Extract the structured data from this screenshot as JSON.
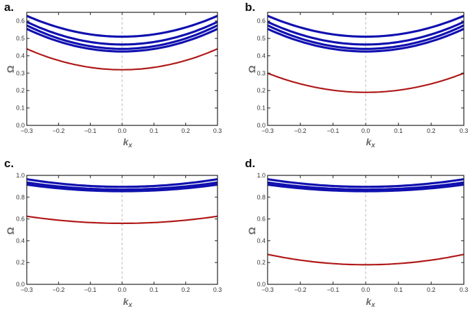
{
  "chart_data": [
    {
      "panel_label": "a.",
      "type": "line",
      "xlabel": "k",
      "xlabel_sub": "x",
      "ylabel": "Ω",
      "xlim": [
        -0.3,
        0.3
      ],
      "ylim": [
        0,
        0.65
      ],
      "xticks": [
        "-0.3",
        "-0.2",
        "-0.1",
        "0.0",
        "0.1",
        "0.2",
        "0.3"
      ],
      "yticks": [
        "0.0",
        "0.1",
        "0.2",
        "0.3",
        "0.4",
        "0.5",
        "0.6"
      ],
      "grid": false,
      "reference_line": {
        "x": 0,
        "style": "dashed"
      },
      "colors": {
        "red_band": "#b01818",
        "blue_band": "#1010b0"
      },
      "series": [
        {
          "color": "red",
          "x": [
            -0.3,
            0.0,
            0.3
          ],
          "values": [
            0.44,
            0.32,
            0.44
          ]
        },
        {
          "color": "blue",
          "x": [
            -0.3,
            0.0,
            0.3
          ],
          "values": [
            0.555,
            0.425,
            0.555
          ]
        },
        {
          "color": "blue",
          "x": [
            -0.3,
            0.0,
            0.3
          ],
          "values": [
            0.575,
            0.44,
            0.575
          ]
        },
        {
          "color": "blue",
          "x": [
            -0.3,
            0.0,
            0.3
          ],
          "values": [
            0.595,
            0.465,
            0.595
          ]
        },
        {
          "color": "blue",
          "x": [
            -0.3,
            0.0,
            0.3
          ],
          "values": [
            0.63,
            0.51,
            0.63
          ]
        }
      ]
    },
    {
      "panel_label": "b.",
      "type": "line",
      "xlabel": "k",
      "xlabel_sub": "x",
      "ylabel": "Ω",
      "xlim": [
        -0.3,
        0.3
      ],
      "ylim": [
        0,
        0.65
      ],
      "xticks": [
        "-0.3",
        "-0.2",
        "-0.1",
        "0.0",
        "0.1",
        "0.2",
        "0.3"
      ],
      "yticks": [
        "0.0",
        "0.1",
        "0.2",
        "0.3",
        "0.4",
        "0.5",
        "0.6"
      ],
      "grid": false,
      "reference_line": {
        "x": 0,
        "style": "dashed"
      },
      "colors": {
        "red_band": "#b01818",
        "blue_band": "#1010b0"
      },
      "series": [
        {
          "color": "red",
          "x": [
            -0.3,
            0.0,
            0.3
          ],
          "values": [
            0.3,
            0.19,
            0.3
          ]
        },
        {
          "color": "blue",
          "x": [
            -0.3,
            0.0,
            0.3
          ],
          "values": [
            0.555,
            0.425,
            0.555
          ]
        },
        {
          "color": "blue",
          "x": [
            -0.3,
            0.0,
            0.3
          ],
          "values": [
            0.575,
            0.44,
            0.575
          ]
        },
        {
          "color": "blue",
          "x": [
            -0.3,
            0.0,
            0.3
          ],
          "values": [
            0.595,
            0.465,
            0.595
          ]
        },
        {
          "color": "blue",
          "x": [
            -0.3,
            0.0,
            0.3
          ],
          "values": [
            0.63,
            0.51,
            0.63
          ]
        }
      ]
    },
    {
      "panel_label": "c.",
      "type": "line",
      "xlabel": "k",
      "xlabel_sub": "x",
      "ylabel": "Ω",
      "xlim": [
        -0.3,
        0.3
      ],
      "ylim": [
        0,
        1.0
      ],
      "xticks": [
        "-0.3",
        "-0.2",
        "-0.1",
        "0.0",
        "0.1",
        "0.2",
        "0.3"
      ],
      "yticks": [
        "0.0",
        "0.2",
        "0.4",
        "0.6",
        "0.8",
        "1.0"
      ],
      "grid": false,
      "reference_line": {
        "x": 0,
        "style": "dashed"
      },
      "colors": {
        "red_band": "#b01818",
        "blue_band": "#1010b0"
      },
      "series": [
        {
          "color": "red",
          "x": [
            -0.3,
            0.0,
            0.3
          ],
          "values": [
            0.625,
            0.56,
            0.625
          ]
        },
        {
          "color": "blue",
          "x": [
            -0.3,
            0.0,
            0.3
          ],
          "values": [
            0.915,
            0.855,
            0.915
          ]
        },
        {
          "color": "blue",
          "x": [
            -0.3,
            0.0,
            0.3
          ],
          "values": [
            0.935,
            0.87,
            0.935
          ]
        },
        {
          "color": "blue",
          "x": [
            -0.3,
            0.0,
            0.3
          ],
          "values": [
            0.965,
            0.895,
            0.965
          ]
        }
      ]
    },
    {
      "panel_label": "d.",
      "type": "line",
      "xlabel": "k",
      "xlabel_sub": "x",
      "ylabel": "Ω",
      "xlim": [
        -0.3,
        0.3
      ],
      "ylim": [
        0,
        1.0
      ],
      "xticks": [
        "-0.3",
        "-0.2",
        "-0.1",
        "0.0",
        "0.1",
        "0.2",
        "0.3"
      ],
      "yticks": [
        "0.0",
        "0.2",
        "0.4",
        "0.6",
        "0.8",
        "1.0"
      ],
      "grid": false,
      "reference_line": {
        "x": 0,
        "style": "dashed"
      },
      "colors": {
        "red_band": "#b01818",
        "blue_band": "#1010b0"
      },
      "series": [
        {
          "color": "red",
          "x": [
            -0.3,
            0.0,
            0.3
          ],
          "values": [
            0.275,
            0.18,
            0.275
          ]
        },
        {
          "color": "blue",
          "x": [
            -0.3,
            0.0,
            0.3
          ],
          "values": [
            0.915,
            0.855,
            0.915
          ]
        },
        {
          "color": "blue",
          "x": [
            -0.3,
            0.0,
            0.3
          ],
          "values": [
            0.935,
            0.87,
            0.935
          ]
        },
        {
          "color": "blue",
          "x": [
            -0.3,
            0.0,
            0.3
          ],
          "values": [
            0.965,
            0.895,
            0.965
          ]
        }
      ]
    }
  ]
}
